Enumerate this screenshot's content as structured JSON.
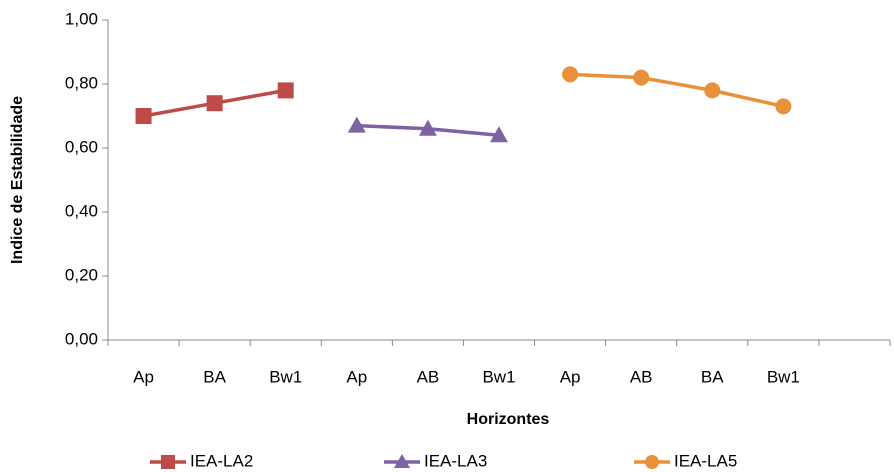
{
  "chart_data": {
    "type": "line",
    "x_label": "Horizontes",
    "y_label": "Indice de Estabilidade",
    "categories": [
      "Ap",
      "BA",
      "Bw1",
      "Ap",
      "AB",
      "Bw1",
      "Ap",
      "AB",
      "BA",
      "Bw1",
      null
    ],
    "series": [
      {
        "name": "IEA-LA2",
        "color": "#be4b48",
        "marker": "square",
        "values": [
          0.7,
          0.74,
          0.78,
          null,
          null,
          null,
          null,
          null,
          null,
          null,
          null
        ]
      },
      {
        "name": "IEA-LA3",
        "color": "#7e62a1",
        "marker": "triangle",
        "values": [
          null,
          null,
          null,
          0.67,
          0.66,
          0.64,
          null,
          null,
          null,
          null,
          null
        ]
      },
      {
        "name": "IEA-LA5",
        "color": "#e8913a",
        "marker": "circle",
        "values": [
          null,
          null,
          null,
          null,
          null,
          null,
          0.83,
          0.82,
          0.78,
          0.73,
          null
        ]
      }
    ],
    "ylim": [
      0,
      1
    ],
    "yticks": [
      {
        "value": 0,
        "label": "0,00"
      },
      {
        "value": 0.2,
        "label": "0,20"
      },
      {
        "value": 0.4,
        "label": "0,40"
      },
      {
        "value": 0.6,
        "label": "0,60"
      },
      {
        "value": 0.8,
        "label": "0,80"
      },
      {
        "value": 1,
        "label": "1,00"
      }
    ],
    "legend": "bottom"
  }
}
